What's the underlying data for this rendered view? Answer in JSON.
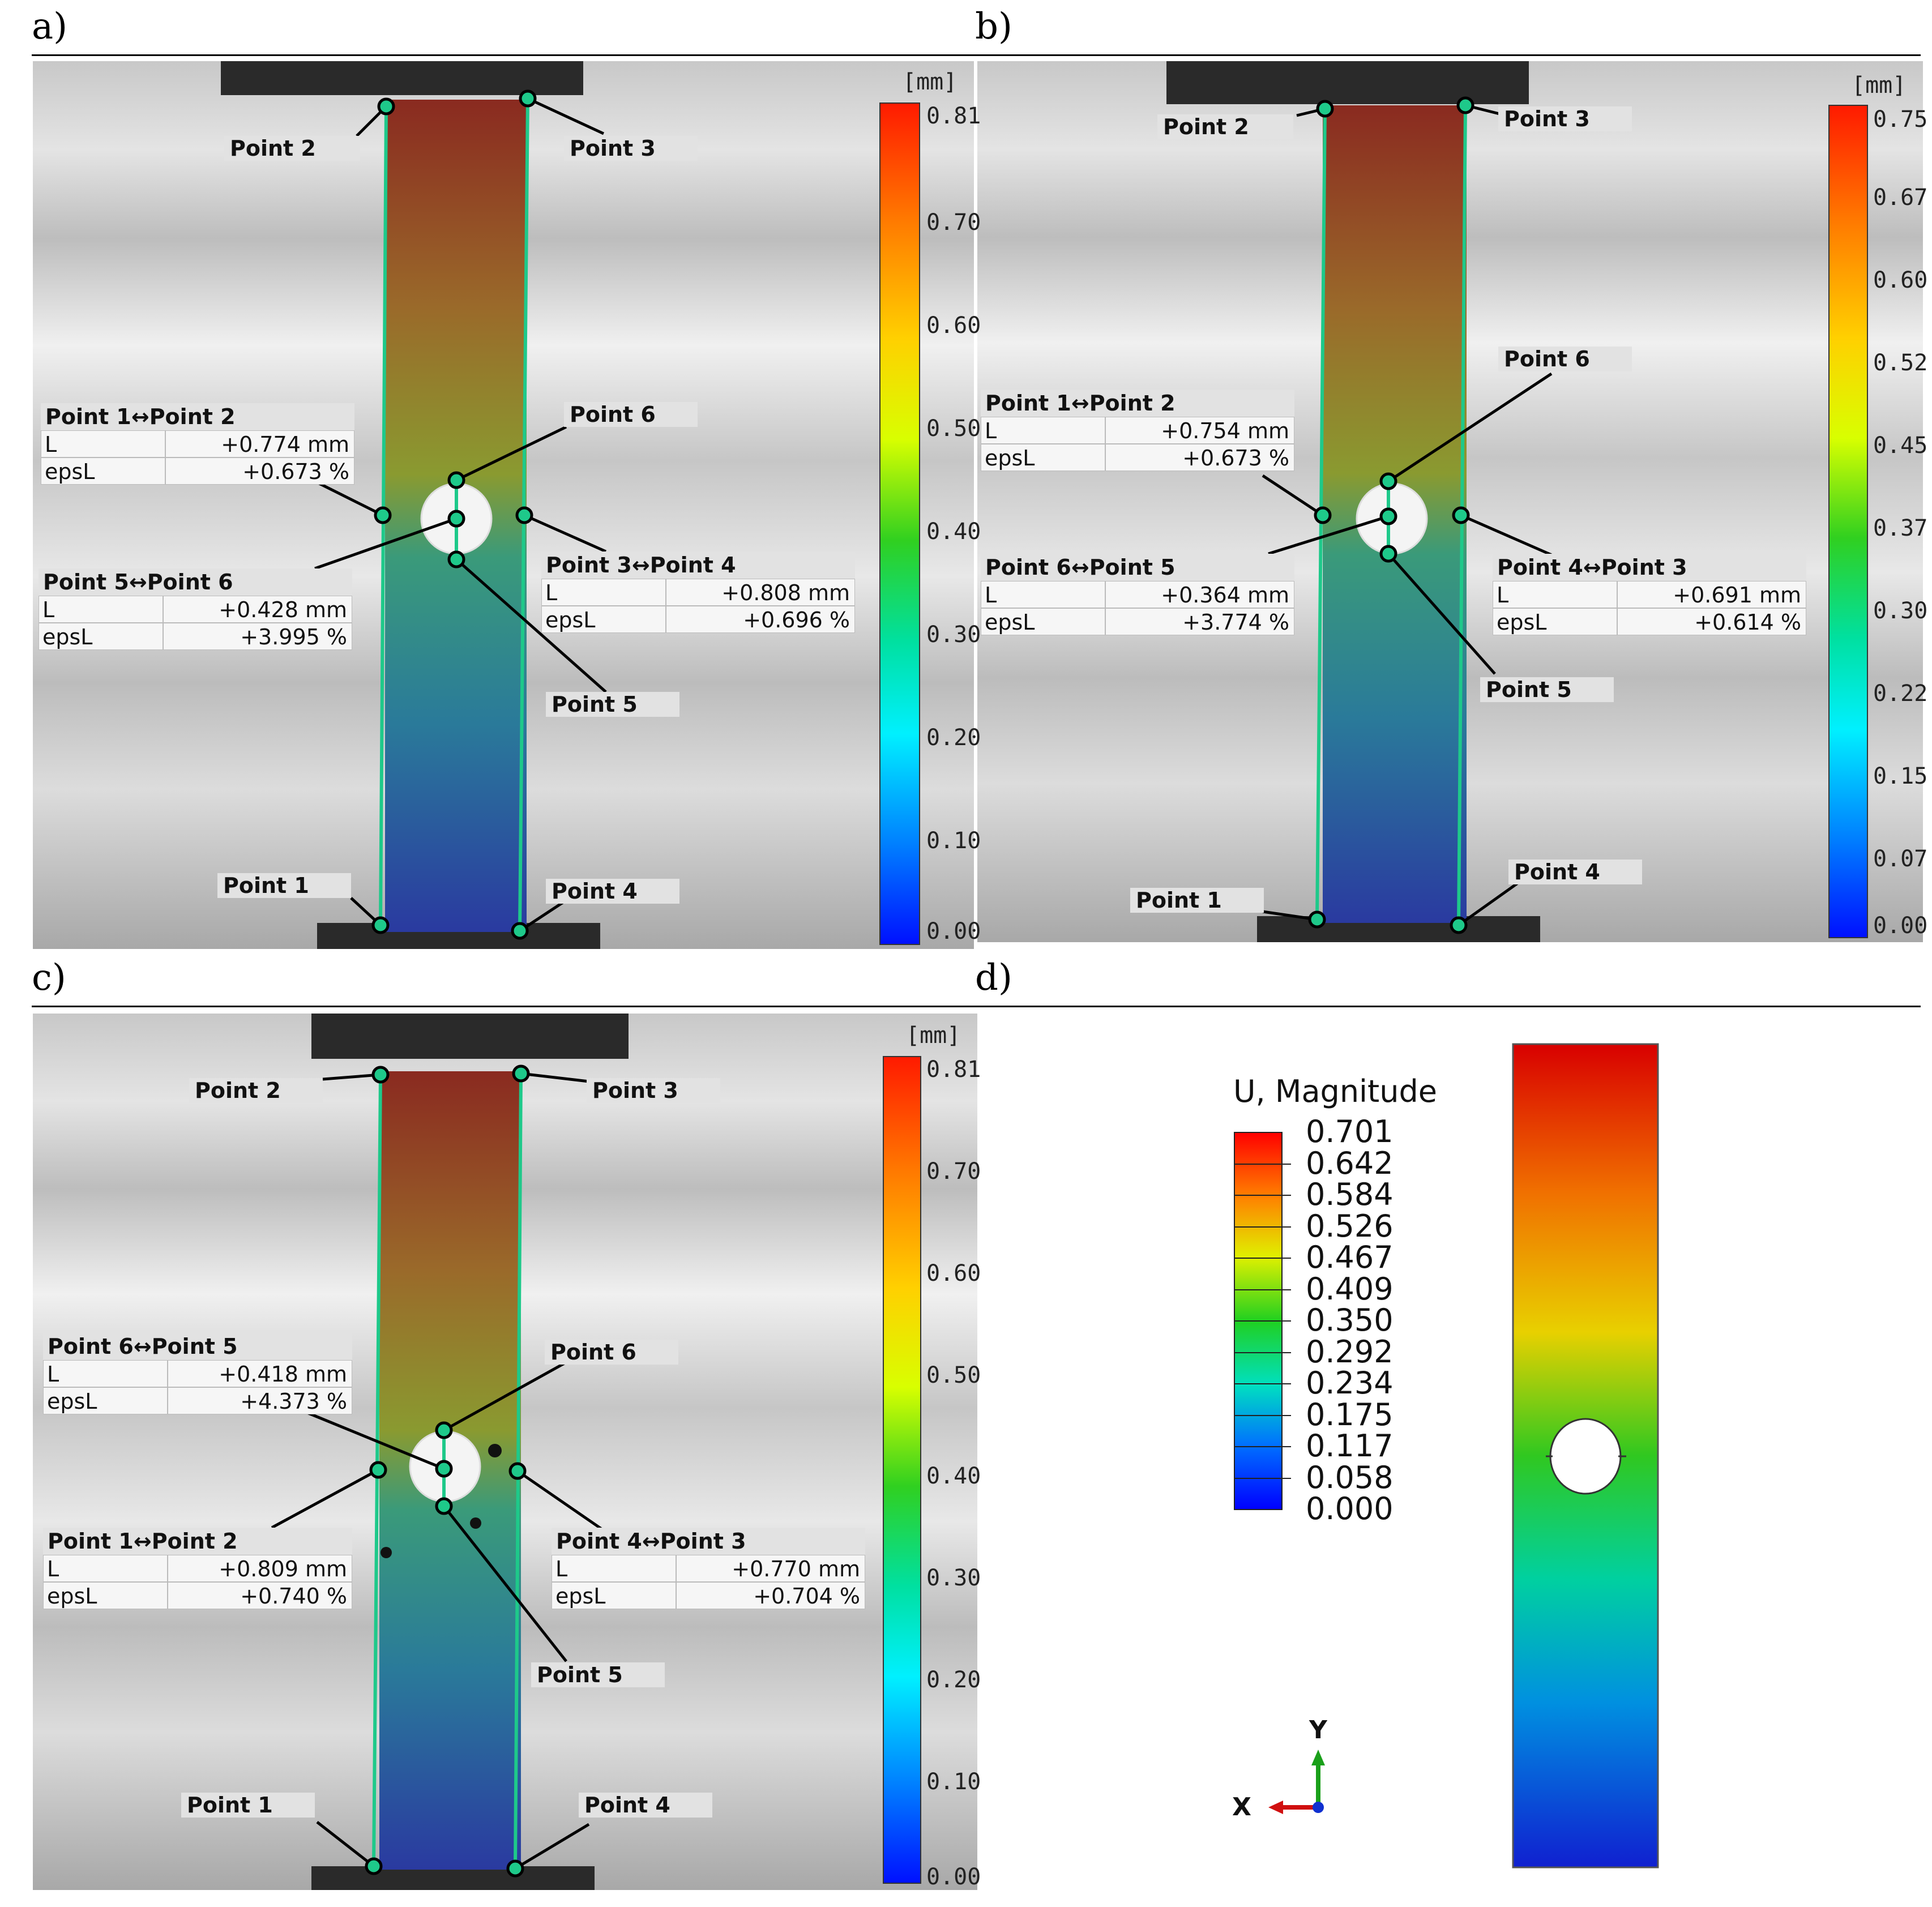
{
  "panels": {
    "a": {
      "letter": "a)",
      "unit": "[mm]",
      "colorbar_ticks": [
        "0.81",
        "0.70",
        "0.60",
        "0.50",
        "0.40",
        "0.30",
        "0.20",
        "0.10",
        "0.00"
      ],
      "points": {
        "p1": "Point 1",
        "p2": "Point 2",
        "p3": "Point 3",
        "p4": "Point 4",
        "p5": "Point 5",
        "p6": "Point 6"
      },
      "tables": [
        {
          "title": "Point 1↔Point 2",
          "L_key": "L",
          "L": "+0.774 mm",
          "eps_key": "epsL",
          "eps": "+0.673 %"
        },
        {
          "title": "Point 5↔Point 6",
          "L_key": "L",
          "L": "+0.428 mm",
          "eps_key": "epsL",
          "eps": "+3.995 %"
        },
        {
          "title": "Point 3↔Point 4",
          "L_key": "L",
          "L": "+0.808 mm",
          "eps_key": "epsL",
          "eps": "+0.696 %"
        }
      ]
    },
    "b": {
      "letter": "b)",
      "unit": "[mm]",
      "colorbar_ticks": [
        "0.75",
        "0.67",
        "0.60",
        "0.52",
        "0.45",
        "0.37",
        "0.30",
        "0.22",
        "0.15",
        "0.07",
        "0.00"
      ],
      "points": {
        "p1": "Point 1",
        "p2": "Point 2",
        "p3": "Point 3",
        "p4": "Point 4",
        "p5": "Point 5",
        "p6": "Point 6"
      },
      "tables": [
        {
          "title": "Point 1↔Point 2",
          "L_key": "L",
          "L": "+0.754 mm",
          "eps_key": "epsL",
          "eps": "+0.673 %"
        },
        {
          "title": "Point 6↔Point 5",
          "L_key": "L",
          "L": "+0.364 mm",
          "eps_key": "epsL",
          "eps": "+3.774 %"
        },
        {
          "title": "Point 4↔Point 3",
          "L_key": "L",
          "L": "+0.691 mm",
          "eps_key": "epsL",
          "eps": "+0.614 %"
        }
      ]
    },
    "c": {
      "letter": "c)",
      "unit": "[mm]",
      "colorbar_ticks": [
        "0.81",
        "0.70",
        "0.60",
        "0.50",
        "0.40",
        "0.30",
        "0.20",
        "0.10",
        "0.00"
      ],
      "points": {
        "p1": "Point 1",
        "p2": "Point 2",
        "p3": "Point 3",
        "p4": "Point 4",
        "p5": "Point 5",
        "p6": "Point 6"
      },
      "tables": [
        {
          "title": "Point 6↔Point 5",
          "L_key": "L",
          "L": "+0.418 mm",
          "eps_key": "epsL",
          "eps": "+4.373 %"
        },
        {
          "title": "Point 1↔Point 2",
          "L_key": "L",
          "L": "+0.809 mm",
          "eps_key": "epsL",
          "eps": "+0.740 %"
        },
        {
          "title": "Point 4↔Point 3",
          "L_key": "L",
          "L": "+0.770 mm",
          "eps_key": "epsL",
          "eps": "+0.704 %"
        }
      ]
    },
    "d": {
      "letter": "d)",
      "legend_title": "U, Magnitude",
      "legend_ticks": [
        "0.701",
        "0.642",
        "0.584",
        "0.526",
        "0.467",
        "0.409",
        "0.350",
        "0.292",
        "0.234",
        "0.175",
        "0.117",
        "0.058",
        "0.000"
      ],
      "axis_y": "Y",
      "axis_x": "X"
    }
  },
  "colors": {
    "dic_scale": [
      "#ff0000",
      "#ff8000",
      "#ffff00",
      "#00c000",
      "#00ffff",
      "#0080ff",
      "#0000ff"
    ],
    "marker": "#1ec98a",
    "background_gray": "#b8b8b8"
  }
}
